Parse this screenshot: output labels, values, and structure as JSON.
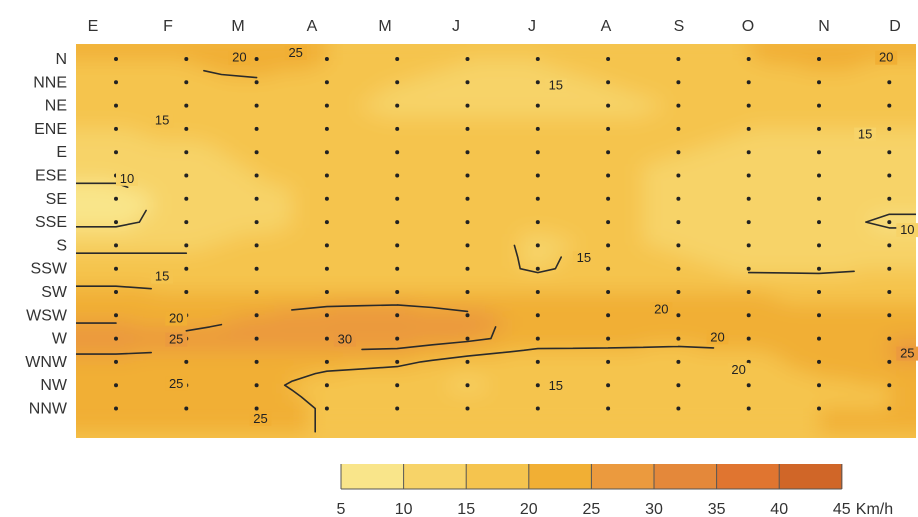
{
  "chart_data": {
    "type": "heatmap",
    "x_categories": [
      "E",
      "F",
      "M",
      "A",
      "M",
      "J",
      "J",
      "A",
      "S",
      "O",
      "N",
      "D"
    ],
    "y_categories": [
      "N",
      "NNE",
      "NE",
      "ENE",
      "E",
      "ESE",
      "SE",
      "SSE",
      "S",
      "SSW",
      "SW",
      "WSW",
      "W",
      "WNW",
      "NW",
      "NNW"
    ],
    "values": [
      [
        20,
        20,
        24,
        20,
        16,
        15,
        15,
        16,
        17,
        20,
        21,
        20
      ],
      [
        19,
        19,
        19,
        17,
        15,
        14,
        14,
        15,
        16,
        17,
        19,
        19
      ],
      [
        18,
        18,
        17,
        16,
        14,
        14,
        14,
        14,
        15,
        16,
        17,
        17
      ],
      [
        15,
        16,
        17,
        16,
        16,
        16,
        16,
        16,
        16,
        15,
        15,
        15
      ],
      [
        14,
        14,
        16,
        16,
        16,
        16,
        16,
        16,
        15,
        14,
        14,
        14
      ],
      [
        11,
        13,
        15,
        16,
        16,
        16,
        16,
        16,
        14,
        13,
        13,
        13
      ],
      [
        8,
        12,
        14,
        16,
        16,
        16,
        16,
        16,
        14,
        12,
        12,
        12
      ],
      [
        9,
        12,
        14,
        16,
        16,
        16,
        16,
        16,
        14,
        12,
        12,
        9
      ],
      [
        14,
        14,
        16,
        17,
        17,
        17,
        14,
        16,
        14,
        12,
        12,
        13
      ],
      [
        17,
        17,
        18,
        18,
        18,
        18,
        14,
        18,
        16,
        14,
        14,
        15
      ],
      [
        21,
        20,
        20,
        20,
        20,
        20,
        20,
        20,
        20,
        20,
        19,
        19
      ],
      [
        24,
        23,
        25,
        28,
        29,
        26,
        24,
        23,
        20,
        21,
        21,
        21
      ],
      [
        27,
        26,
        27,
        28,
        28,
        26,
        23,
        22,
        21,
        21,
        22,
        25
      ],
      [
        24,
        24,
        23,
        22,
        21,
        18,
        16,
        17,
        18,
        19,
        21,
        25
      ],
      [
        21,
        21,
        22,
        17,
        16,
        14,
        16,
        16,
        17,
        18,
        19,
        20
      ],
      [
        20,
        21,
        25,
        19,
        18,
        19,
        19,
        19,
        19,
        19,
        20,
        20
      ]
    ],
    "contour_labels": [
      {
        "text": "20",
        "month": 1.5,
        "dir": 0.9
      },
      {
        "text": "25",
        "month": 2.3,
        "dir": 0.7
      },
      {
        "text": "20",
        "month": 10.7,
        "dir": 0.9
      },
      {
        "text": "15",
        "month": 6.0,
        "dir": 2.1
      },
      {
        "text": "15",
        "month": 0.4,
        "dir": 3.6
      },
      {
        "text": "15",
        "month": 10.4,
        "dir": 4.2
      },
      {
        "text": "10",
        "month": -0.1,
        "dir": 6.1
      },
      {
        "text": "10",
        "month": 11.0,
        "dir": 8.3
      },
      {
        "text": "15",
        "month": 6.4,
        "dir": 9.5
      },
      {
        "text": "15",
        "month": 0.4,
        "dir": 10.3
      },
      {
        "text": "20",
        "month": 0.6,
        "dir": 12.1
      },
      {
        "text": "20",
        "month": 7.5,
        "dir": 11.7
      },
      {
        "text": "25",
        "month": 0.6,
        "dir": 13.0
      },
      {
        "text": "30",
        "month": 3.0,
        "dir": 13.0
      },
      {
        "text": "20",
        "month": 8.3,
        "dir": 12.9
      },
      {
        "text": "25",
        "month": 0.6,
        "dir": 14.9
      },
      {
        "text": "20",
        "month": 8.6,
        "dir": 14.3
      },
      {
        "text": "25",
        "month": 11.0,
        "dir": 13.6
      },
      {
        "text": "15",
        "month": 6.0,
        "dir": 15.0
      },
      {
        "text": "25",
        "month": 1.8,
        "dir": 16.4
      }
    ],
    "color_scale": {
      "ticks": [
        5,
        10,
        15,
        20,
        25,
        30,
        35,
        40,
        45
      ],
      "unit": "Km/h",
      "colors": [
        "#f9e58a",
        "#f7d368",
        "#f5c44e",
        "#f1af34",
        "#eb9a3e",
        "#e4883a",
        "#e07530",
        "#d06628"
      ]
    },
    "title": "",
    "xlabel": "",
    "ylabel": "",
    "grid": false,
    "legend": "bottom"
  }
}
